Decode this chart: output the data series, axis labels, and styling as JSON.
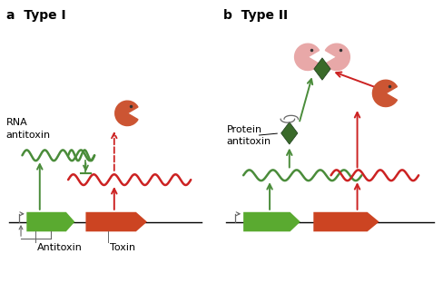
{
  "bg_color": "#ffffff",
  "green_color": "#4a8c3a",
  "red_color": "#cc2222",
  "green_box_color": "#5aaa30",
  "red_box_color": "#cc4422",
  "pink_color": "#e8a8a8",
  "dark_green": "#3a6a2a",
  "pacman_color": "#cc5533",
  "gray_color": "#666666",
  "label_a": "a  Type I",
  "label_b": "b  Type II",
  "text_rna": "RNA\nantitoxin",
  "text_protein": "Protein\nantitoxin",
  "text_antitoxin": "Antitoxin",
  "text_toxin": "Toxin",
  "title_fontsize": 10,
  "label_fontsize": 8
}
